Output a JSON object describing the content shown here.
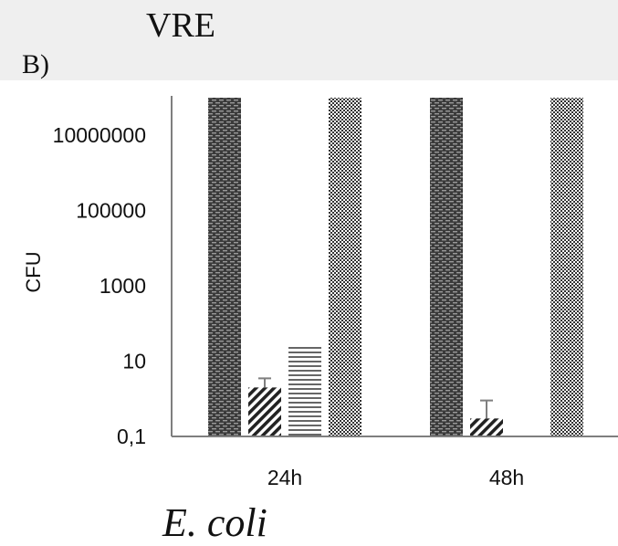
{
  "heading": "VRE",
  "panel_label": "B)",
  "caption": "E. coli",
  "chart_data": {
    "type": "bar",
    "scale": "log",
    "ylabel": "CFU",
    "xlabel": "",
    "categories": [
      "24h",
      "48h"
    ],
    "ylim": [
      0.1,
      100000000
    ],
    "yticks": [
      0.1,
      10,
      1000,
      100000,
      10000000
    ],
    "ytick_labels": [
      "0,1",
      "10",
      "1000",
      "100000",
      "10000000"
    ],
    "grid": false,
    "legend": "none",
    "series": [
      {
        "values": [
          100000000,
          100000000
        ],
        "pattern": "dark-dash",
        "clipped_at_top": true
      },
      {
        "values": [
          2,
          0.3
        ],
        "error": [
          1.5,
          0.6
        ],
        "pattern": "diagonal-stripe"
      },
      {
        "values": [
          25,
          null
        ],
        "pattern": "horizontal-stripe"
      },
      {
        "values": [
          100000000,
          100000000
        ],
        "pattern": "checker",
        "clipped_at_top": true
      }
    ],
    "colors": {
      "axis": "#7f7f7f",
      "dark_bar": "#3a3a3a",
      "stripe": "#222222"
    }
  }
}
